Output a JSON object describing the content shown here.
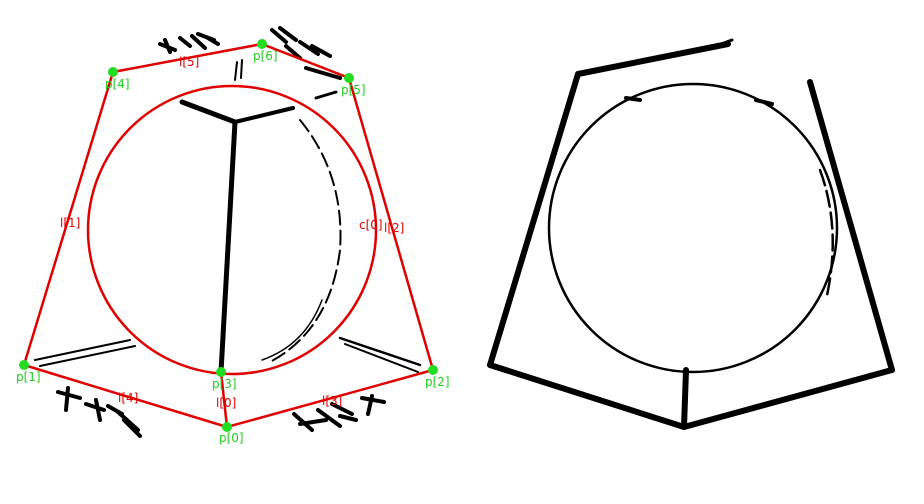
{
  "left_panel": {
    "points": [
      {
        "label": "p[0]"
      },
      {
        "label": "p[1]"
      },
      {
        "label": "p[2]"
      },
      {
        "label": "p[3]"
      },
      {
        "label": "p[4]"
      },
      {
        "label": "p[5]"
      },
      {
        "label": "p[6]"
      }
    ],
    "lines": [
      {
        "label": "l[0]"
      },
      {
        "label": "l[1]"
      },
      {
        "label": "l[2]"
      },
      {
        "label": "l[3]"
      },
      {
        "label": "l[4]"
      },
      {
        "label": "l[5]"
      }
    ],
    "circle": {
      "label": "c[0]"
    }
  },
  "colors": {
    "annotation_red": "#e00000",
    "point_green": "#22dd22",
    "label_green": "#22cc22",
    "sketch_black": "#000000"
  }
}
